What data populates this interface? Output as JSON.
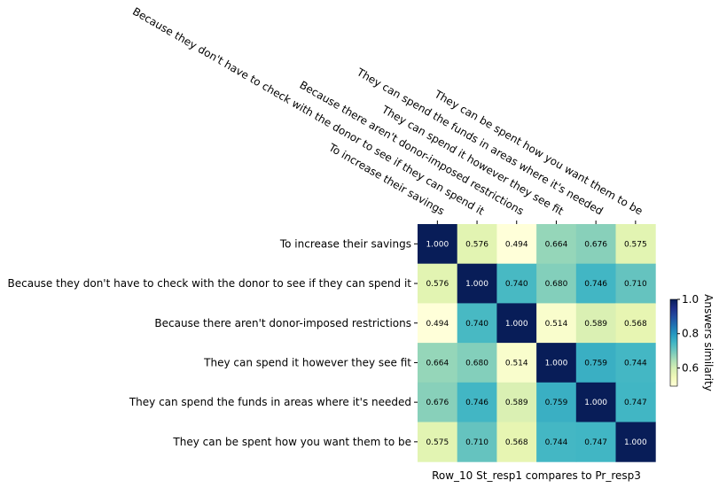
{
  "chart_data": {
    "type": "heatmap",
    "title": "",
    "xlabel": "Row_10 St_resp1 compares to Pr_resp3",
    "ylabel": "",
    "categories": [
      "To increase their savings",
      "Because they don't have to check with the donor to see if they can spend it",
      "Because there aren't donor-imposed restrictions",
      "They can spend it however they see fit",
      "They can spend the funds in areas where it's needed",
      "They can be spent how you want them to be"
    ],
    "values": [
      [
        1.0,
        0.576,
        0.494,
        0.664,
        0.676,
        0.575
      ],
      [
        0.576,
        1.0,
        0.74,
        0.68,
        0.746,
        0.71
      ],
      [
        0.494,
        0.74,
        1.0,
        0.514,
        0.589,
        0.568
      ],
      [
        0.664,
        0.68,
        0.514,
        1.0,
        0.759,
        0.744
      ],
      [
        0.676,
        0.746,
        0.589,
        0.759,
        1.0,
        0.747
      ],
      [
        0.575,
        0.71,
        0.568,
        0.744,
        0.747,
        1.0
      ]
    ],
    "value_format": "3 decimals",
    "colorbar": {
      "label": "Answers similarity",
      "min": 0.494,
      "max": 1.0,
      "ticks": [
        "0.6",
        "0.8",
        "1.0"
      ],
      "tick_values": [
        0.6,
        0.8,
        1.0
      ],
      "colormap": "YlGnBu"
    },
    "x_tick_position": "top",
    "grid": false
  }
}
